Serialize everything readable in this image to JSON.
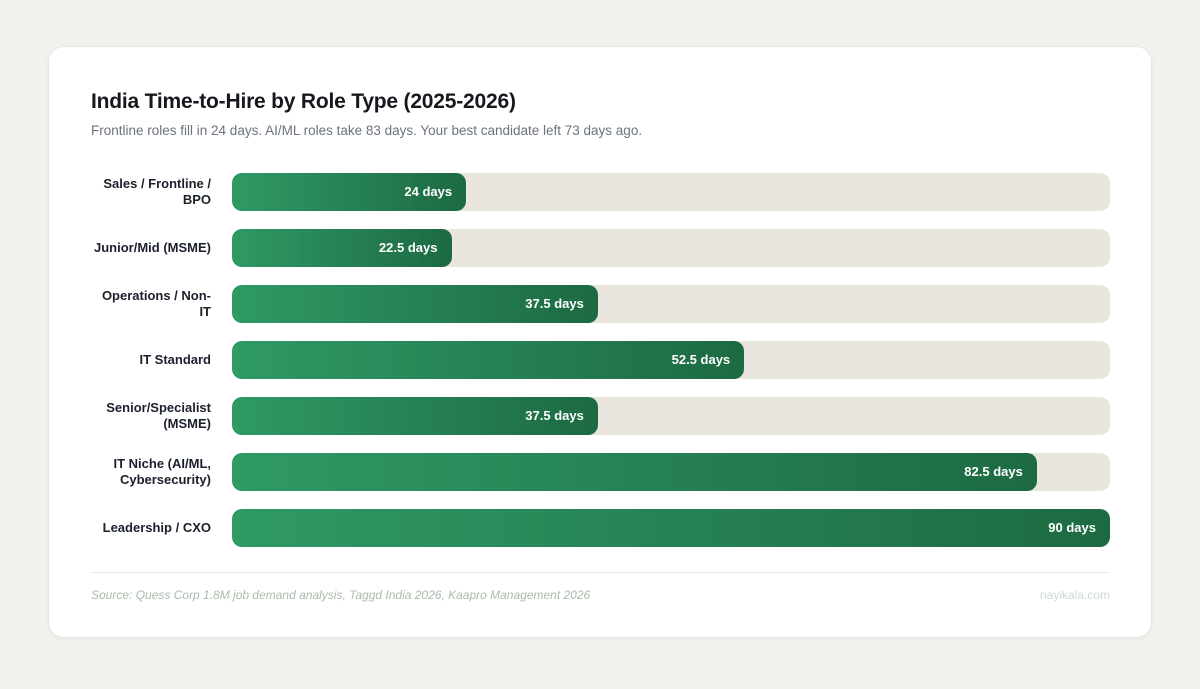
{
  "page": {
    "background_color": "#f2f1ec",
    "card_color": "#ffffff"
  },
  "card": {
    "title": "India Time-to-Hire by Role Type (2025-2026)",
    "subtitle": "Frontline roles fill in 24 days. AI/ML roles take 83 days. Your best candidate left 73 days ago.",
    "footer": {
      "source": "Source: Quess Corp 1.8M job demand analysis, Taggd India 2026, Kaapro Management 2026",
      "brand": "nayikala.com"
    }
  },
  "chart_data": {
    "type": "bar",
    "orientation": "horizontal",
    "title": "India Time-to-Hire by Role Type (2025-2026)",
    "subtitle": "Frontline roles fill in 24 days. AI/ML roles take 83 days. Your best candidate left 73 days ago.",
    "categories": [
      "Sales / Frontline / BPO",
      "Junior/Mid (MSME)",
      "Operations / Non-IT",
      "IT Standard",
      "Senior/Specialist (MSME)",
      "IT Niche (AI/ML, Cybersecurity)",
      "Leadership / CXO"
    ],
    "values": [
      24,
      22.5,
      37.5,
      52.5,
      37.5,
      82.5,
      90
    ],
    "value_labels": [
      "24 days",
      "22.5 days",
      "37.5 days",
      "52.5 days",
      "37.5 days",
      "82.5 days",
      "90 days"
    ],
    "unit": "days",
    "xlabel": "",
    "ylabel": "",
    "xlim": [
      0,
      90
    ],
    "grid": false,
    "legend": false,
    "colors": {
      "bar_gradient_start": "#2f9a64",
      "bar_gradient_end": "#1d6a42",
      "track": "#e9e6df",
      "value_text": "#ffffff"
    }
  }
}
